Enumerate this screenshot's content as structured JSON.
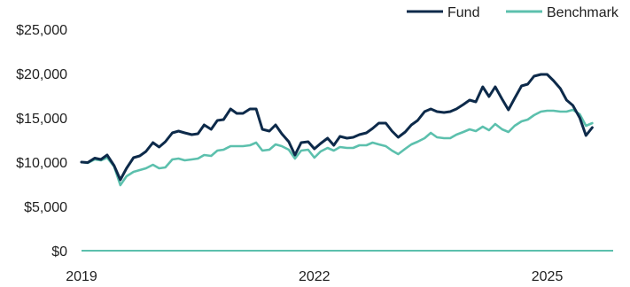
{
  "chart_data": {
    "type": "line",
    "title": "",
    "xlabel": "",
    "ylabel": "",
    "ylim": [
      0,
      25000
    ],
    "xlim": [
      2019.0,
      2025.85
    ],
    "grid": false,
    "legend_position": "top-right",
    "y_ticks": [
      {
        "value": 0,
        "label": "$0"
      },
      {
        "value": 5000,
        "label": "$5,000"
      },
      {
        "value": 10000,
        "label": "$10,000"
      },
      {
        "value": 15000,
        "label": "$15,000"
      },
      {
        "value": 20000,
        "label": "$20,000"
      },
      {
        "value": 25000,
        "label": "$25,000"
      }
    ],
    "x_ticks": [
      {
        "value": 2019,
        "label": "2019"
      },
      {
        "value": 2022,
        "label": "2022"
      },
      {
        "value": 2025,
        "label": "2025"
      }
    ],
    "x": [
      2019.0,
      2019.08,
      2019.17,
      2019.25,
      2019.33,
      2019.42,
      2019.5,
      2019.58,
      2019.67,
      2019.75,
      2019.83,
      2019.92,
      2020.0,
      2020.08,
      2020.17,
      2020.25,
      2020.33,
      2020.42,
      2020.5,
      2020.58,
      2020.67,
      2020.75,
      2020.83,
      2020.92,
      2021.0,
      2021.08,
      2021.17,
      2021.25,
      2021.33,
      2021.42,
      2021.5,
      2021.58,
      2021.67,
      2021.75,
      2021.83,
      2021.92,
      2022.0,
      2022.08,
      2022.17,
      2022.25,
      2022.33,
      2022.42,
      2022.5,
      2022.58,
      2022.67,
      2022.75,
      2022.83,
      2022.92,
      2023.0,
      2023.08,
      2023.17,
      2023.25,
      2023.33,
      2023.42,
      2023.5,
      2023.58,
      2023.67,
      2023.75,
      2023.83,
      2023.92,
      2024.0,
      2024.08,
      2024.17,
      2024.25,
      2024.33,
      2024.42,
      2024.5,
      2024.58,
      2024.67,
      2024.75,
      2024.83,
      2024.92,
      2025.0,
      2025.08,
      2025.17,
      2025.25,
      2025.33,
      2025.42,
      2025.5,
      2025.58
    ],
    "series": [
      {
        "name": "Fund",
        "color": "#0d2a4a",
        "values": [
          10000,
          9950,
          10450,
          10300,
          10800,
          9600,
          8000,
          9300,
          10500,
          10700,
          11200,
          12200,
          11700,
          12300,
          13300,
          13500,
          13300,
          13100,
          13200,
          14200,
          13700,
          14700,
          14800,
          16000,
          15500,
          15500,
          16000,
          16000,
          13700,
          13500,
          14200,
          13200,
          12300,
          10800,
          12200,
          12300,
          11500,
          12100,
          12700,
          11900,
          12900,
          12700,
          12800,
          13100,
          13300,
          13800,
          14400,
          14400,
          13500,
          12800,
          13400,
          14200,
          14700,
          15700,
          16000,
          15700,
          15600,
          15700,
          16000,
          16500,
          17000,
          16800,
          18500,
          17400,
          18500,
          17100,
          15900,
          17200,
          18600,
          18800,
          19700,
          19900,
          19900,
          19200,
          18300,
          17000,
          16400,
          15000,
          13000,
          13900
        ]
      },
      {
        "name": "Benchmark",
        "color": "#5cc0ad",
        "values": [
          10000,
          9900,
          10300,
          10200,
          10500,
          9500,
          7400,
          8400,
          8900,
          9100,
          9300,
          9700,
          9300,
          9400,
          10300,
          10400,
          10200,
          10300,
          10400,
          10800,
          10700,
          11300,
          11400,
          11800,
          11800,
          11800,
          11900,
          12200,
          11300,
          11400,
          12000,
          11800,
          11400,
          10400,
          11300,
          11400,
          10500,
          11200,
          11600,
          11300,
          11700,
          11600,
          11600,
          11900,
          11900,
          12200,
          12000,
          11800,
          11300,
          10900,
          11500,
          12000,
          12300,
          12700,
          13300,
          12800,
          12700,
          12700,
          13100,
          13400,
          13700,
          13500,
          14000,
          13600,
          14300,
          13700,
          13400,
          14100,
          14600,
          14800,
          15300,
          15700,
          15800,
          15800,
          15700,
          15700,
          15900,
          15400,
          14100,
          14400
        ]
      }
    ]
  },
  "colors": {
    "axis_line": "#5cc0ad",
    "text": "#1f1f1f"
  }
}
